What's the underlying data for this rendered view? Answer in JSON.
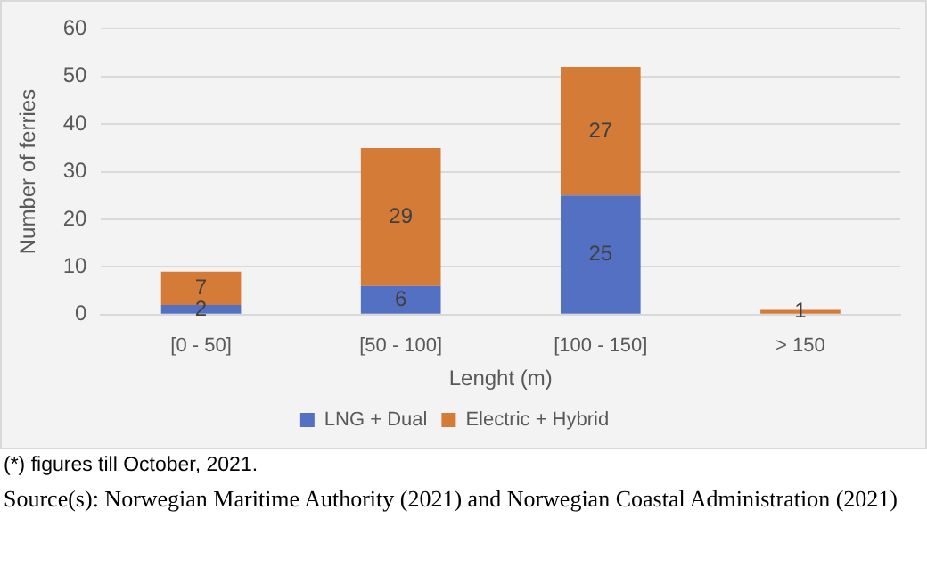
{
  "chart_data": {
    "type": "bar",
    "stacked": true,
    "categories": [
      "[0 - 50]",
      "[50 - 100]",
      "[100 - 150]",
      "> 150"
    ],
    "xlabel": "Lenght (m)",
    "ylabel": "Number of ferries",
    "series": [
      {
        "name": "LNG + Dual",
        "color": "#5470c2",
        "values": [
          2,
          6,
          25,
          0
        ],
        "value_labels": [
          "2",
          "6",
          "25",
          null
        ]
      },
      {
        "name": "Electric + Hybrid",
        "color": "#d57b38",
        "values": [
          7,
          29,
          27,
          1
        ],
        "value_labels": [
          "7",
          "29",
          "27",
          "1"
        ]
      }
    ],
    "ylim": [
      0,
      60
    ],
    "yticks": [
      0,
      10,
      20,
      30,
      40,
      50,
      60
    ],
    "grid": "y",
    "legend": "bottom",
    "annotations": [
      "(*) figures till October, 2021.",
      "Source(s): Norwegian Maritime Authority (2021) and Norwegian Coastal Administration (2021)"
    ]
  }
}
